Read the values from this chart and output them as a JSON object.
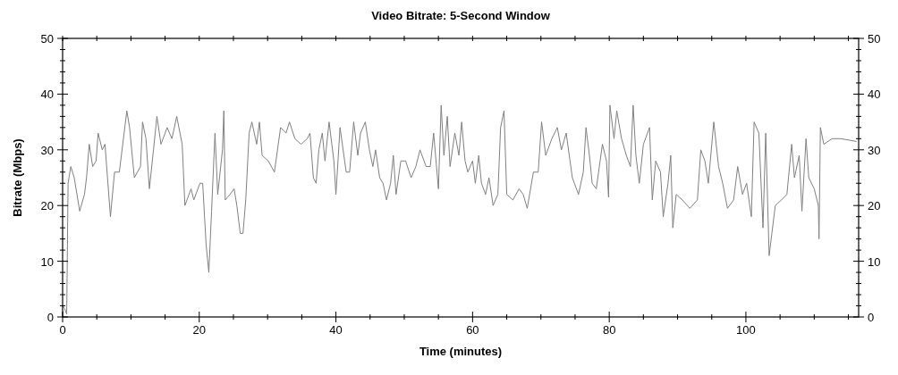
{
  "chart_data": {
    "type": "line",
    "title": "Video Bitrate: 5-Second Window",
    "xlabel": "Time (minutes)",
    "ylabel": "Bitrate (Mbps)",
    "x": [
      0,
      0.3,
      0.6,
      0.8,
      1.2,
      1.7,
      2.5,
      3.2,
      3.5,
      3.9,
      4.4,
      4.9,
      5.2,
      5.8,
      6.2,
      7,
      7.6,
      8.3,
      9,
      9.4,
      9.8,
      10.5,
      11.4,
      11.7,
      12.2,
      12.7,
      13.3,
      13.8,
      14.4,
      15.3,
      16,
      16.7,
      17.5,
      17.9,
      18.8,
      19.2,
      20.1,
      20.5,
      21,
      21.4,
      21.8,
      22.3,
      22.7,
      23.4,
      23.6,
      23.8,
      24.5,
      25.1,
      25.5,
      26,
      26.4,
      26.8,
      27.3,
      27.7,
      28.4,
      28.8,
      29.2,
      30.1,
      31,
      31.9,
      32.7,
      33.2,
      34,
      34.9,
      35.8,
      36.2,
      36.7,
      37.1,
      37.5,
      38,
      38.4,
      39,
      39.7,
      40,
      40.6,
      41.5,
      42,
      42.6,
      43.2,
      43.6,
      44.3,
      44.9,
      45.4,
      45.8,
      46.4,
      46.9,
      47.4,
      48,
      48.4,
      48.8,
      49.5,
      50.2,
      51,
      51.7,
      52.3,
      53.2,
      53.8,
      54.3,
      55,
      55.4,
      55.8,
      56.3,
      56.7,
      57.4,
      58,
      58.4,
      58.9,
      59.3,
      60,
      60.4,
      60.9,
      61.3,
      61.9,
      62.4,
      63,
      63.7,
      64.1,
      64.6,
      65,
      65.9,
      66.8,
      67.4,
      68,
      68.9,
      69.6,
      70.1,
      70.7,
      71.6,
      72.4,
      73,
      73.7,
      74.6,
      75.5,
      76.2,
      76.6,
      77.1,
      77.5,
      78.1,
      79,
      79.6,
      79.9,
      80.1,
      80.7,
      81.1,
      81.8,
      82.5,
      83.1,
      83.5,
      83.9,
      84.4,
      85,
      85.9,
      86.3,
      86.8,
      87.5,
      87.9,
      88.6,
      89,
      89.3,
      89.8,
      90.7,
      91.8,
      92.9,
      93.4,
      94,
      94.5,
      95.3,
      96,
      96.6,
      97.3,
      98.2,
      98.8,
      99.5,
      100.1,
      100.8,
      101.2,
      101.9,
      102.5,
      102.9,
      103.4,
      103.8,
      104.3,
      105.2,
      106,
      106.7,
      107.1,
      107.8,
      108.2,
      108.8,
      109.2,
      110,
      110.6,
      110.7,
      110.9,
      111.4,
      112.6,
      113.9,
      116.2
    ],
    "series": [
      {
        "color": "#808080",
        "values": [
          2,
          1.5,
          0.5,
          24,
          27,
          25,
          19,
          22,
          25,
          31,
          27,
          28,
          33,
          30,
          31,
          18,
          26,
          26,
          33,
          37,
          34,
          25,
          27,
          35,
          32,
          23,
          30,
          36,
          31,
          34,
          32,
          36,
          31,
          20,
          23,
          21,
          24,
          24,
          13,
          8,
          19,
          33,
          22,
          30,
          37,
          21,
          22,
          23,
          20,
          15,
          15,
          21,
          33,
          35,
          31,
          35,
          29,
          28,
          26,
          34,
          33,
          35,
          32,
          31,
          32,
          33,
          25,
          24,
          30,
          33,
          28,
          35,
          28,
          22,
          34,
          26,
          26,
          35,
          29,
          33,
          35,
          30,
          27,
          30,
          25,
          24,
          21,
          24,
          29,
          22,
          28,
          28,
          25,
          27,
          30,
          27,
          27,
          33,
          23,
          38,
          29,
          36,
          27,
          33,
          29,
          35,
          28,
          26,
          28,
          24,
          29,
          24,
          22,
          25,
          20,
          22,
          34,
          37,
          22,
          21,
          23,
          22,
          19.5,
          26,
          26,
          35,
          29,
          32,
          34,
          30,
          33,
          25,
          22,
          26,
          34,
          29,
          24,
          23,
          31,
          28,
          21.5,
          38,
          32,
          37,
          32,
          29,
          27,
          38,
          29,
          24,
          31,
          34,
          21,
          28,
          26,
          18,
          24,
          29,
          16,
          22,
          21,
          19.5,
          21,
          30,
          28,
          24,
          35,
          27,
          24,
          19.5,
          21,
          27,
          22,
          24,
          18,
          35,
          33,
          16,
          33,
          11,
          15,
          20,
          21,
          22,
          31,
          25,
          29,
          19,
          32,
          25,
          23,
          20,
          14,
          34,
          31,
          32,
          32,
          31.5
        ]
      }
    ],
    "xlim": [
      0,
      116.5
    ],
    "xticks": [
      0,
      {
        "value": 5,
        "label": null
      },
      {
        "value": 10,
        "label": null
      },
      {
        "value": 15,
        "label": null
      },
      20,
      {
        "value": 25,
        "label": null
      },
      {
        "value": 30,
        "label": null
      },
      {
        "value": 35,
        "label": null
      },
      40,
      {
        "value": 45,
        "label": null
      },
      {
        "value": 50,
        "label": null
      },
      {
        "value": 55,
        "label": null
      },
      60,
      {
        "value": 65,
        "label": null
      },
      {
        "value": 70,
        "label": null
      },
      {
        "value": 75,
        "label": null
      },
      80,
      {
        "value": 85,
        "label": null
      },
      {
        "value": 90,
        "label": null
      },
      {
        "value": 95,
        "label": null
      },
      100,
      {
        "value": 105,
        "label": null
      },
      {
        "value": 110,
        "label": null
      },
      {
        "value": 115,
        "label": null
      }
    ],
    "ylim": [
      0,
      50
    ],
    "yticks": [
      0,
      {
        "value": 2,
        "label": null
      },
      {
        "value": 4,
        "label": null
      },
      {
        "value": 6,
        "label": null
      },
      {
        "value": 8,
        "label": null
      },
      10,
      {
        "value": 12,
        "label": null
      },
      {
        "value": 14,
        "label": null
      },
      {
        "value": 16,
        "label": null
      },
      {
        "value": 18,
        "label": null
      },
      20,
      {
        "value": 22,
        "label": null
      },
      {
        "value": 24,
        "label": null
      },
      {
        "value": 26,
        "label": null
      },
      {
        "value": 28,
        "label": null
      },
      30,
      {
        "value": 32,
        "label": null
      },
      {
        "value": 34,
        "label": null
      },
      {
        "value": 36,
        "label": null
      },
      {
        "value": 38,
        "label": null
      },
      40,
      {
        "value": 42,
        "label": null
      },
      {
        "value": 44,
        "label": null
      },
      {
        "value": 46,
        "label": null
      },
      {
        "value": 48,
        "label": null
      },
      50
    ],
    "y2lim": [
      0,
      50
    ],
    "y2ticks": [
      0,
      {
        "value": 2,
        "label": null
      },
      {
        "value": 4,
        "label": null
      },
      {
        "value": 6,
        "label": null
      },
      {
        "value": 8,
        "label": null
      },
      10,
      {
        "value": 12,
        "label": null
      },
      {
        "value": 14,
        "label": null
      },
      {
        "value": 16,
        "label": null
      },
      {
        "value": 18,
        "label": null
      },
      20,
      {
        "value": 22,
        "label": null
      },
      {
        "value": 24,
        "label": null
      },
      {
        "value": 26,
        "label": null
      },
      {
        "value": 28,
        "label": null
      },
      30,
      {
        "value": 32,
        "label": null
      },
      {
        "value": 34,
        "label": null
      },
      {
        "value": 36,
        "label": null
      },
      {
        "value": 38,
        "label": null
      },
      40,
      {
        "value": 42,
        "label": null
      },
      {
        "value": 44,
        "label": null
      },
      {
        "value": 46,
        "label": null
      },
      {
        "value": 48,
        "label": null
      },
      50
    ],
    "grid": false,
    "line_style": "solid",
    "marker": "none"
  }
}
